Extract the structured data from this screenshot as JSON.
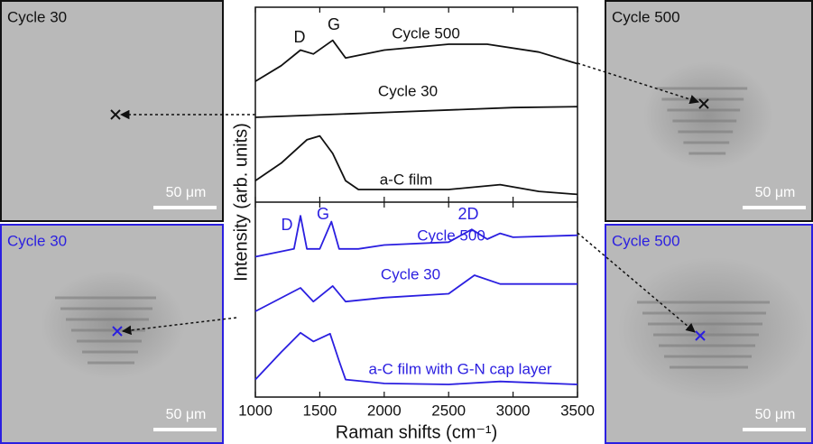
{
  "chart_data": [
    {
      "type": "line",
      "y_label": "Intensity (arb. units)",
      "xlim": [
        1000,
        3500
      ],
      "ylim": [
        0,
        10
      ],
      "annotations": [
        "D",
        "G"
      ],
      "series": [
        {
          "name": "Cycle 500",
          "color": "#111111",
          "x": [
            1000,
            1200,
            1350,
            1450,
            1600,
            1700,
            2000,
            2500,
            2800,
            3200,
            3500
          ],
          "values": [
            6.2,
            7.0,
            7.8,
            7.6,
            8.3,
            7.4,
            7.8,
            8.1,
            8.1,
            7.7,
            7.1
          ]
        },
        {
          "name": "Cycle 30",
          "color": "#111111",
          "x": [
            1000,
            2000,
            3000,
            3500
          ],
          "values": [
            4.35,
            4.6,
            4.85,
            4.9
          ]
        },
        {
          "name": "a-C film",
          "color": "#111111",
          "x": [
            1000,
            1200,
            1400,
            1500,
            1600,
            1700,
            1800,
            2500,
            2900,
            3200,
            3500
          ],
          "values": [
            1.1,
            2.0,
            3.2,
            3.4,
            2.5,
            1.1,
            0.65,
            0.65,
            0.9,
            0.55,
            0.4
          ]
        }
      ]
    },
    {
      "type": "line",
      "x_label": "Raman shifts (cm⁻¹)",
      "xlim": [
        1000,
        3500
      ],
      "ylim": [
        0,
        10
      ],
      "xticks": [
        1000,
        1500,
        2000,
        2500,
        3000,
        3500
      ],
      "annotations": [
        "D",
        "G",
        "2D"
      ],
      "series": [
        {
          "name": "Cycle 500",
          "color": "#2b1fe0",
          "x": [
            1000,
            1300,
            1350,
            1400,
            1500,
            1590,
            1650,
            1800,
            2000,
            2500,
            2680,
            2800,
            2900,
            3000,
            3500
          ],
          "values": [
            7.2,
            7.6,
            9.3,
            7.6,
            7.6,
            9.0,
            7.6,
            7.6,
            7.8,
            7.95,
            8.6,
            8.1,
            8.4,
            8.2,
            8.3
          ]
        },
        {
          "name": "Cycle 30",
          "color": "#2b1fe0",
          "x": [
            1000,
            1350,
            1450,
            1600,
            1700,
            2000,
            2500,
            2700,
            2900,
            3500
          ],
          "values": [
            4.4,
            5.6,
            4.9,
            5.7,
            4.9,
            5.1,
            5.3,
            6.25,
            5.8,
            5.8
          ]
        },
        {
          "name": "a-C film with G-N cap layer",
          "color": "#2b1fe0",
          "x": [
            1000,
            1200,
            1350,
            1450,
            1580,
            1650,
            1700,
            2000,
            2500,
            2900,
            3500
          ],
          "values": [
            0.9,
            2.3,
            3.3,
            2.85,
            3.25,
            1.85,
            0.9,
            0.7,
            0.65,
            0.8,
            0.65
          ]
        }
      ]
    }
  ],
  "micrographs": [
    {
      "label": "Cycle 30",
      "scale_bar": "50 μm",
      "color": "#111111"
    },
    {
      "label": "Cycle 30",
      "scale_bar": "50 μm",
      "color": "#2b1fe0"
    },
    {
      "label": "Cycle 500",
      "scale_bar": "50 μm",
      "color": "#111111"
    },
    {
      "label": "Cycle 500",
      "scale_bar": "50 μm",
      "color": "#2b1fe0"
    }
  ]
}
